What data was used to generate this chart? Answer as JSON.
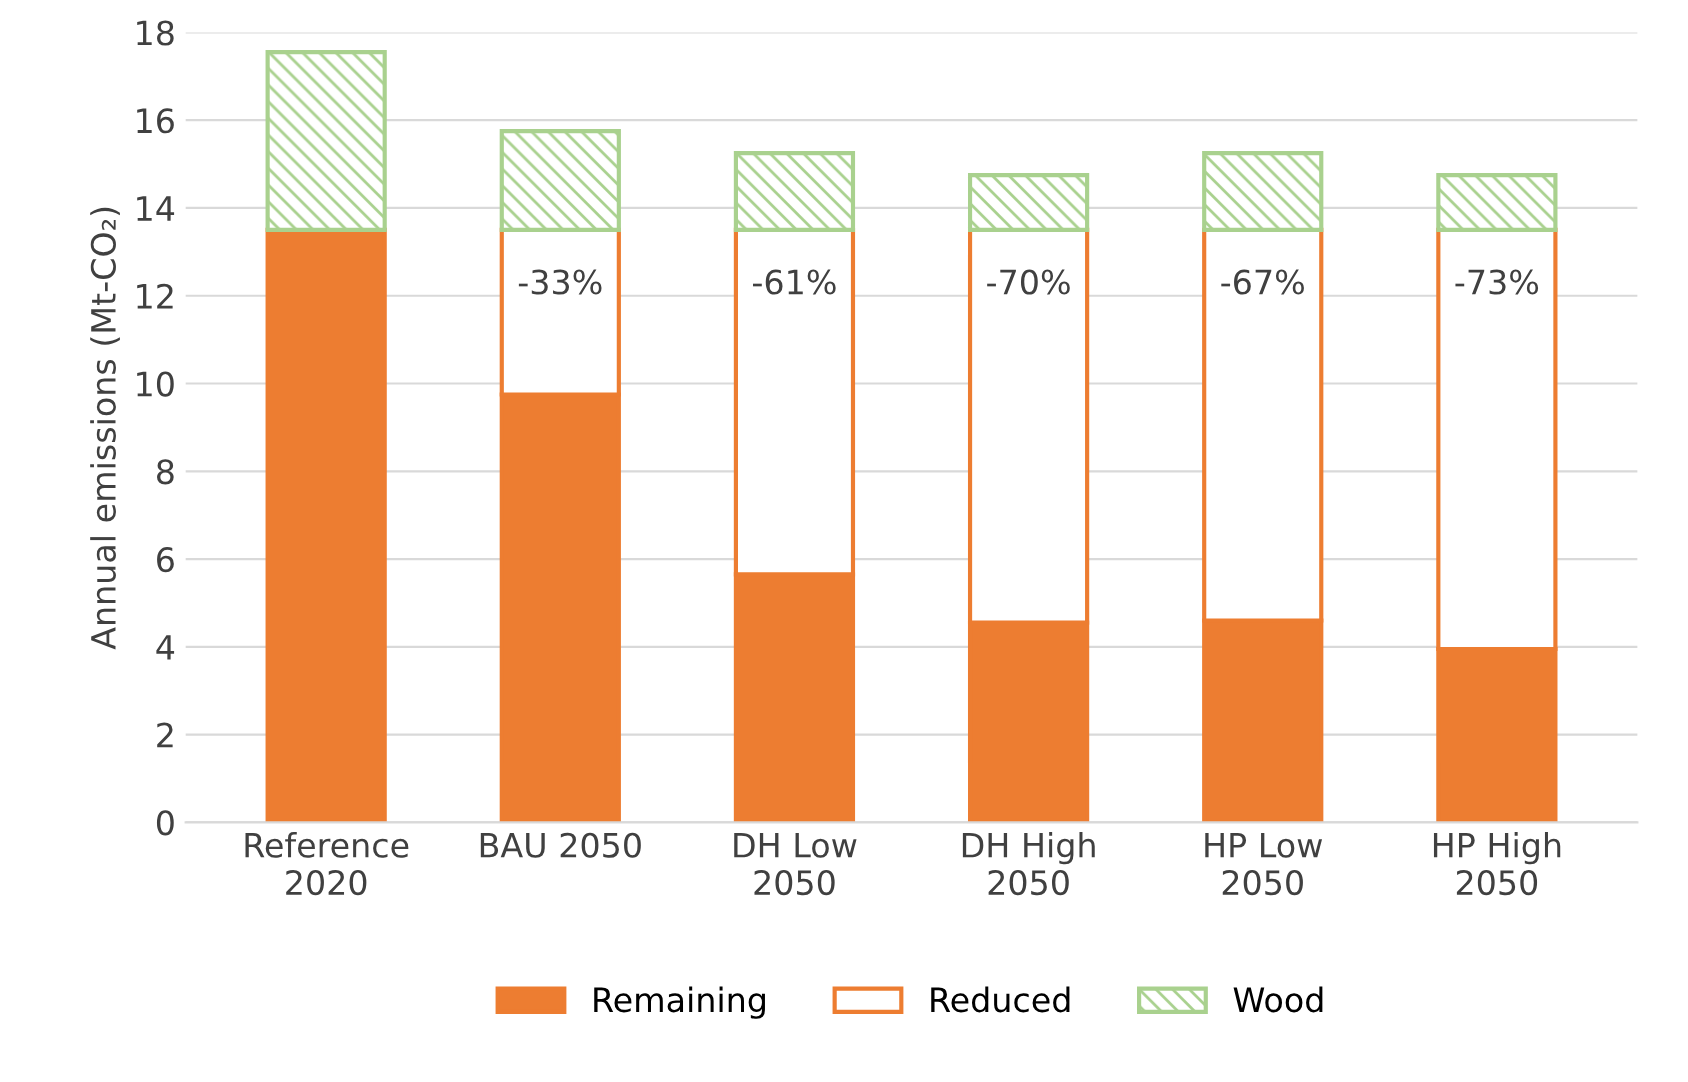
{
  "chart_data": {
    "type": "bar",
    "stacked": true,
    "ylabel": "Annual emissions (Mt-CO₂)",
    "categories": [
      "Reference\n2020",
      "BAU 2050",
      "DH Low\n2050",
      "DH High\n2050",
      "HP Low\n2050",
      "HP High\n2050"
    ],
    "series": [
      {
        "name": "Remaining",
        "color": "#ed7d31",
        "values": [
          13.5,
          9.75,
          5.65,
          4.55,
          4.6,
          3.95
        ]
      },
      {
        "name": "Reduced",
        "color": "#ed7d31",
        "values": [
          0,
          3.75,
          7.85,
          8.95,
          8.9,
          9.55
        ]
      },
      {
        "name": "Wood",
        "color": "#a9d18e",
        "values": [
          4.05,
          2.25,
          1.75,
          1.25,
          1.75,
          1.25
        ]
      }
    ],
    "annotations": [
      {
        "text": "-33%",
        "x": "BAU 2050",
        "y": 13.5
      },
      {
        "text": "-61%",
        "x": "DH Low\n2050",
        "y": 13.5
      },
      {
        "text": "-70%",
        "x": "DH High\n2050",
        "y": 13.5
      },
      {
        "text": "-67%",
        "x": "HP Low\n2050",
        "y": 13.5
      },
      {
        "text": "-73%",
        "x": "HP High\n2050",
        "y": 13.5
      }
    ],
    "ylim": [
      0,
      18
    ],
    "yticks": [
      0,
      2,
      4,
      6,
      8,
      10,
      12,
      14,
      16,
      18
    ],
    "grid": "y",
    "legend": "bottom"
  }
}
